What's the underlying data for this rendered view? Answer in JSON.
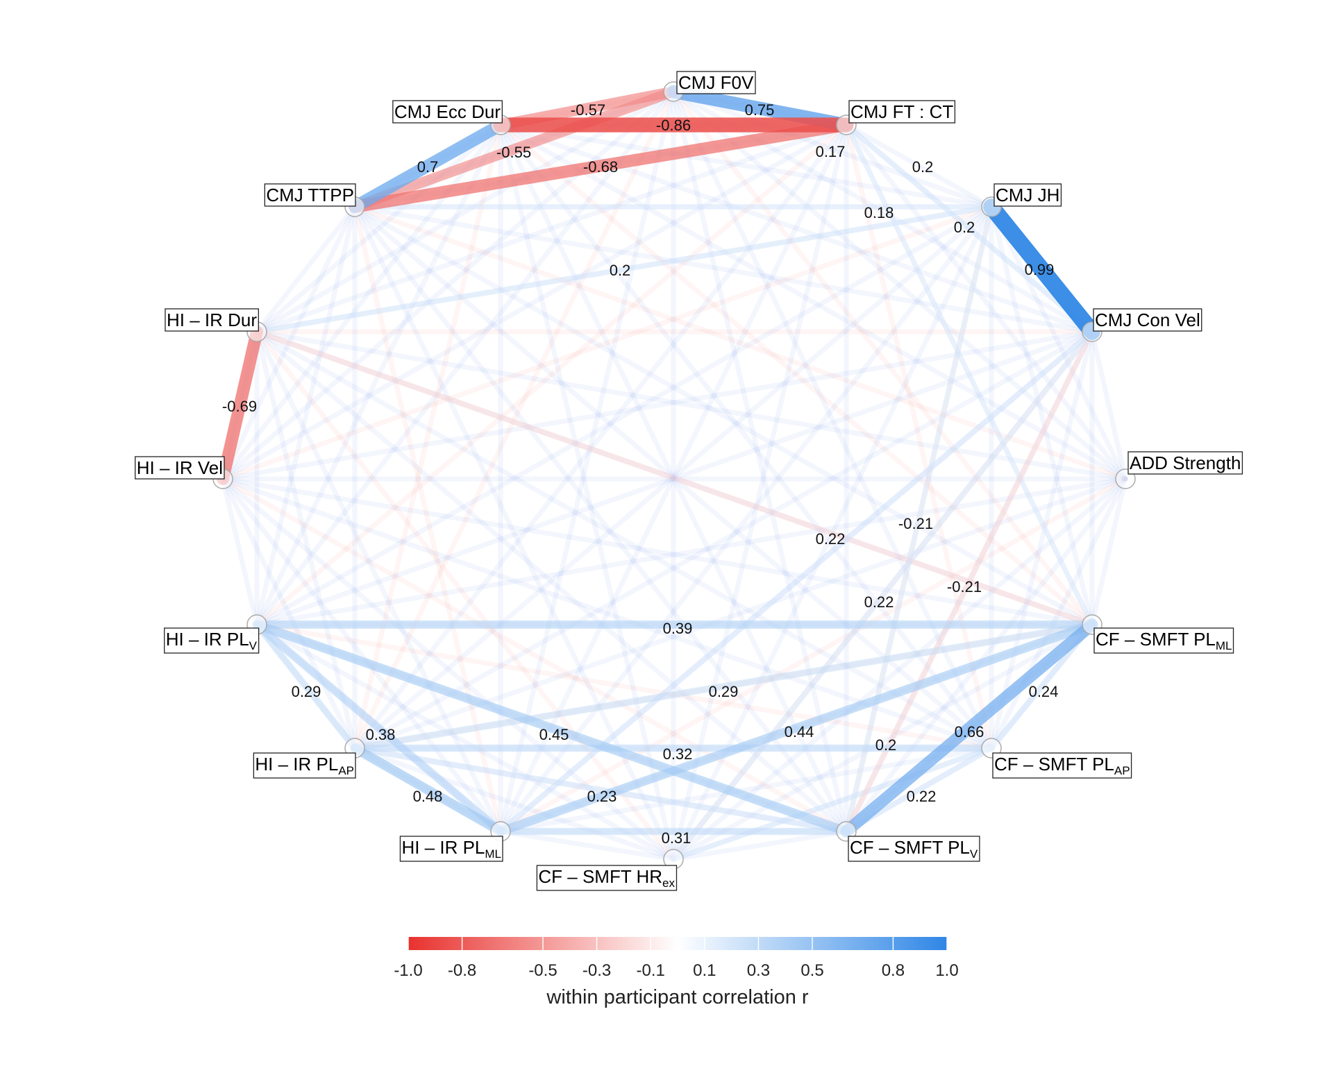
{
  "nodes": [
    {
      "id": "cmj_f0v",
      "label": "CMJ F0V"
    },
    {
      "id": "cmj_ftct",
      "label": "CMJ FT : CT"
    },
    {
      "id": "cmj_jh",
      "label": "CMJ JH"
    },
    {
      "id": "cmj_convel",
      "label": "CMJ Con Vel"
    },
    {
      "id": "add_strength",
      "label": "ADD Strength"
    },
    {
      "id": "cf_smft_plml",
      "label": "CF – SMFT PL",
      "sub": "ML"
    },
    {
      "id": "cf_smft_plap",
      "label": "CF – SMFT PL",
      "sub": "AP"
    },
    {
      "id": "cf_smft_plv",
      "label": "CF – SMFT PL",
      "sub": "V"
    },
    {
      "id": "cf_smft_hrex",
      "label": "CF – SMFT HR",
      "sub": "ex"
    },
    {
      "id": "hi_ir_plml",
      "label": "HI – IR PL",
      "sub": "ML"
    },
    {
      "id": "hi_ir_plap",
      "label": "HI – IR PL",
      "sub": "AP"
    },
    {
      "id": "hi_ir_plv",
      "label": "HI – IR PL",
      "sub": "V"
    },
    {
      "id": "hi_ir_vel",
      "label": "HI – IR Vel"
    },
    {
      "id": "hi_ir_dur",
      "label": "HI – IR Dur"
    },
    {
      "id": "cmj_ttpp",
      "label": "CMJ TTPP"
    },
    {
      "id": "cmj_eccdur",
      "label": "CMJ Ecc Dur"
    }
  ],
  "edges": [
    {
      "source": "cmj_f0v",
      "target": "cmj_ftct",
      "r": 0.75,
      "label": "0.75"
    },
    {
      "source": "cmj_eccdur",
      "target": "cmj_f0v",
      "r": -0.57,
      "label": "-0.57"
    },
    {
      "source": "cmj_eccdur",
      "target": "cmj_ftct",
      "r": -0.86,
      "label": "-0.86"
    },
    {
      "source": "cmj_f0v",
      "target": "cmj_ttpp",
      "r": -0.55,
      "label": "-0.55"
    },
    {
      "source": "cmj_ttpp",
      "target": "cmj_eccdur",
      "r": 0.7,
      "label": "0.7"
    },
    {
      "source": "cmj_ttpp",
      "target": "cmj_ftct",
      "r": -0.68,
      "label": "-0.68"
    },
    {
      "source": "cmj_ftct",
      "target": "cmj_convel",
      "r": 0.2,
      "label": "0.2"
    },
    {
      "source": "cmj_ftct",
      "target": "cf_smft_plml",
      "r": 0.17,
      "label": "0.17"
    },
    {
      "source": "cmj_ttpp",
      "target": "cmj_jh",
      "r": 0.18,
      "label": "0.18"
    },
    {
      "source": "cmj_jh",
      "target": "cf_smft_plv",
      "r": 0.2,
      "label": "0.2"
    },
    {
      "source": "cmj_jh",
      "target": "cmj_convel",
      "r": 0.99,
      "label": "0.99"
    },
    {
      "source": "hi_ir_dur",
      "target": "cmj_jh",
      "r": 0.2,
      "label": "0.2"
    },
    {
      "source": "hi_ir_dur",
      "target": "hi_ir_vel",
      "r": -0.69,
      "label": "-0.69"
    },
    {
      "source": "cmj_convel",
      "target": "cf_smft_hrex",
      "r": 0.22,
      "label": "0.22"
    },
    {
      "source": "cmj_convel",
      "target": "cf_smft_plv",
      "r": -0.21,
      "label": "-0.21"
    },
    {
      "source": "hi_ir_dur",
      "target": "cf_smft_plml",
      "r": -0.21,
      "label": "-0.21"
    },
    {
      "source": "cmj_convel",
      "target": "hi_ir_plml",
      "r": 0.22,
      "label": "0.22"
    },
    {
      "source": "hi_ir_plv",
      "target": "cf_smft_plml",
      "r": 0.39,
      "label": "0.39"
    },
    {
      "source": "hi_ir_plv",
      "target": "hi_ir_plap",
      "r": 0.29,
      "label": "0.29"
    },
    {
      "source": "hi_ir_plv",
      "target": "hi_ir_plml",
      "r": 0.38,
      "label": "0.38"
    },
    {
      "source": "hi_ir_plv",
      "target": "cf_smft_plv",
      "r": 0.45,
      "label": "0.45"
    },
    {
      "source": "hi_ir_plap",
      "target": "hi_ir_plml",
      "r": 0.48,
      "label": "0.48"
    },
    {
      "source": "hi_ir_plap",
      "target": "cf_smft_plml",
      "r": 0.29,
      "label": "0.29"
    },
    {
      "source": "hi_ir_plap",
      "target": "cf_smft_plap",
      "r": 0.32,
      "label": "0.32"
    },
    {
      "source": "hi_ir_plml",
      "target": "cf_smft_plml",
      "r": 0.44,
      "label": "0.44"
    },
    {
      "source": "hi_ir_plap",
      "target": "cf_smft_plv",
      "r": 0.23,
      "label": "0.23"
    },
    {
      "source": "hi_ir_plml",
      "target": "cf_smft_plv",
      "r": 0.31,
      "label": "0.31"
    },
    {
      "source": "cf_smft_plv",
      "target": "cf_smft_plml",
      "r": 0.66,
      "label": "0.66"
    },
    {
      "source": "cf_smft_plml",
      "target": "cf_smft_plap",
      "r": 0.24,
      "label": "0.24"
    },
    {
      "source": "cf_smft_plv",
      "target": "cf_smft_plap",
      "r": 0.22,
      "label": "0.22"
    },
    {
      "source": "cf_smft_hrex",
      "target": "cf_smft_plap",
      "r": 0.2,
      "label": "0.2"
    }
  ],
  "colors": {
    "negative": "#e8322e",
    "neutral": "#ffffff",
    "positive": "#2f86e6",
    "node_fill": "#ffffff",
    "node_stroke": "#aaaaaa",
    "label_border": "#222222"
  },
  "legend": {
    "type": "colorbar",
    "placement": "bottom",
    "range": [
      -1.0,
      1.0
    ],
    "tick_labels": [
      "-1.0",
      "-0.8",
      "-0.5",
      "-0.3",
      "-0.1",
      "0.1",
      "0.3",
      "0.5",
      "0.8",
      "1.0"
    ],
    "title": "within participant correlation r"
  }
}
